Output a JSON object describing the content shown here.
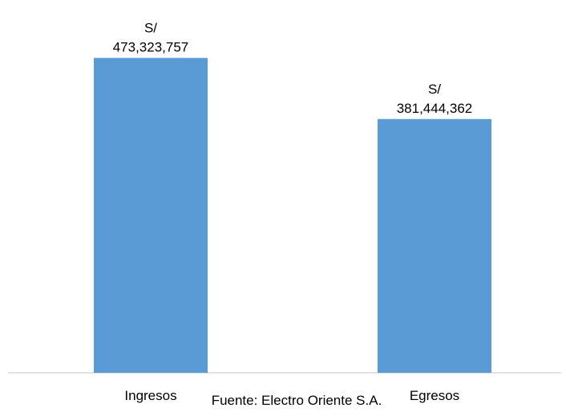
{
  "chart_data": {
    "type": "bar",
    "categories": [
      "Ingresos",
      "Egresos"
    ],
    "values": [
      473323757,
      381444362
    ],
    "value_labels": [
      [
        "S/",
        "473,323,757"
      ],
      [
        "S/",
        "381,444,362"
      ]
    ],
    "ylim": [
      0,
      475000000
    ],
    "grid": false,
    "legend": "none",
    "colors": {
      "bar": "#5b9bd5",
      "axis": "#d9d9d9",
      "text": "#000000"
    }
  },
  "source": {
    "text": "Fuente: Electro Oriente S.A."
  }
}
